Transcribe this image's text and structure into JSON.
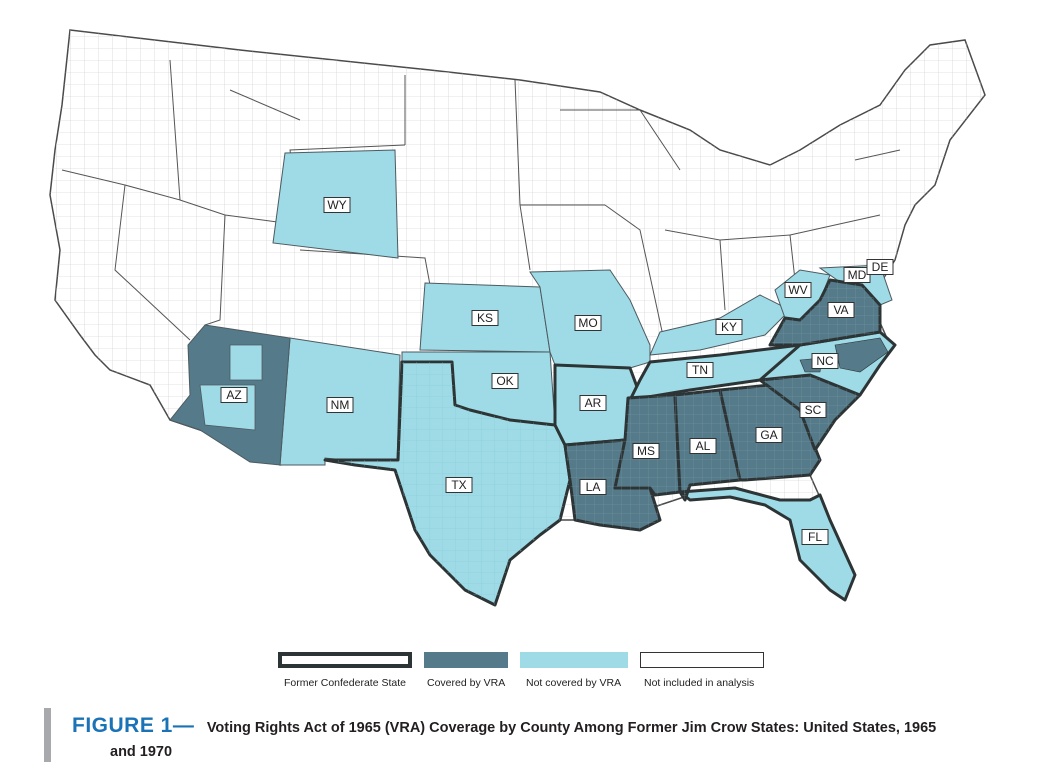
{
  "colors": {
    "covered": "#557a8a",
    "not_covered": "#9fdbe6",
    "not_included": "#ffffff",
    "confederate_border": "#2d3435",
    "county_line": "#c2c2c2",
    "state_line": "#3a3a3a"
  },
  "states": [
    {
      "abbr": "WY",
      "fill": "not_covered"
    },
    {
      "abbr": "AZ",
      "fill": "mixed"
    },
    {
      "abbr": "NM",
      "fill": "not_covered"
    },
    {
      "abbr": "TX",
      "fill": "not_covered",
      "confederate": true
    },
    {
      "abbr": "KS",
      "fill": "not_covered"
    },
    {
      "abbr": "OK",
      "fill": "not_covered"
    },
    {
      "abbr": "MO",
      "fill": "not_covered"
    },
    {
      "abbr": "AR",
      "fill": "not_covered",
      "confederate": true
    },
    {
      "abbr": "LA",
      "fill": "covered",
      "confederate": true
    },
    {
      "abbr": "MS",
      "fill": "covered",
      "confederate": true
    },
    {
      "abbr": "AL",
      "fill": "covered",
      "confederate": true
    },
    {
      "abbr": "GA",
      "fill": "covered",
      "confederate": true
    },
    {
      "abbr": "SC",
      "fill": "covered",
      "confederate": true
    },
    {
      "abbr": "NC",
      "fill": "mixed",
      "confederate": true
    },
    {
      "abbr": "VA",
      "fill": "covered",
      "confederate": true
    },
    {
      "abbr": "TN",
      "fill": "not_covered",
      "confederate": true
    },
    {
      "abbr": "KY",
      "fill": "not_covered"
    },
    {
      "abbr": "WV",
      "fill": "not_covered"
    },
    {
      "abbr": "MD",
      "fill": "not_covered"
    },
    {
      "abbr": "DE",
      "fill": "not_covered"
    },
    {
      "abbr": "FL",
      "fill": "not_covered",
      "confederate": true
    }
  ],
  "legend": [
    {
      "label": "Former Confederate State",
      "style": "outline"
    },
    {
      "label": "Covered by VRA",
      "style": "covered"
    },
    {
      "label": "Not covered by VRA",
      "style": "not_covered"
    },
    {
      "label": "Not included in analysis",
      "style": "not_included"
    }
  ],
  "caption": {
    "lead": "FIGURE 1—",
    "title_line1": "Voting Rights Act of 1965 (VRA) Coverage by County Among Former Jim Crow States: United States, 1965",
    "title_line2": "and 1970"
  }
}
